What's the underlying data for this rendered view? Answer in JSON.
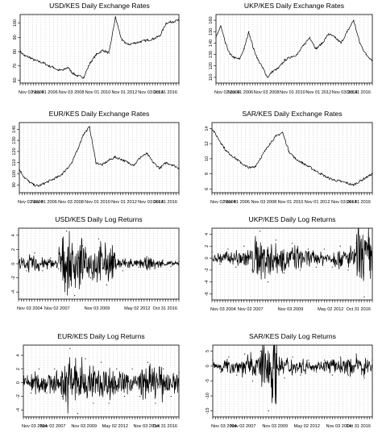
{
  "chart_data": [
    {
      "type": "line",
      "title": "USD/KES Daily Exchange Rates",
      "xlabel": "",
      "ylabel": "",
      "x_ticks": [
        "Nov 02 2004",
        "Nov 01 2006",
        "Nov 03 2008",
        "Nov 01 2010",
        "Nov 01 2012",
        "Nov 03 2014",
        "Oct 31 2016"
      ],
      "y_ticks": [
        "60",
        "70",
        "80",
        "90",
        "100"
      ],
      "ylim": [
        58,
        106
      ],
      "x": [
        0,
        3,
        6,
        9,
        12,
        15,
        18,
        21,
        24,
        27,
        30,
        33,
        36,
        40,
        44,
        48,
        52,
        56,
        60,
        64,
        68,
        72,
        76,
        80,
        84,
        88,
        92,
        96,
        100
      ],
      "values": [
        80,
        77,
        76,
        74,
        73,
        72,
        70,
        69,
        67,
        67,
        69,
        65,
        63,
        62,
        72,
        78,
        81,
        79,
        104,
        88,
        85,
        86,
        87,
        88,
        89,
        91,
        100,
        101,
        102
      ],
      "grid": true
    },
    {
      "type": "line",
      "title": "UKP/KES Daily Exchange Rates",
      "xlabel": "",
      "ylabel": "",
      "x_ticks": [
        "Nov 02 2004",
        "Nov 01 2006",
        "Nov 03 2008",
        "Nov 01 2010",
        "Nov 01 2012",
        "Nov 03 2014",
        "Oct 31 2016"
      ],
      "y_ticks": [
        "110",
        "120",
        "130",
        "140",
        "150",
        "160"
      ],
      "ylim": [
        105,
        165
      ],
      "x": [
        0,
        3,
        6,
        9,
        12,
        15,
        18,
        21,
        24,
        27,
        30,
        33,
        36,
        40,
        44,
        48,
        52,
        56,
        60,
        64,
        68,
        72,
        76,
        80,
        84,
        88,
        92,
        96,
        100
      ],
      "values": [
        145,
        155,
        140,
        130,
        127,
        126,
        135,
        150,
        135,
        125,
        118,
        110,
        115,
        118,
        125,
        128,
        130,
        138,
        145,
        135,
        140,
        148,
        145,
        140,
        150,
        160,
        140,
        130,
        125
      ],
      "grid": true
    },
    {
      "type": "line",
      "title": "EUR/KES Daily Exchange Rates",
      "xlabel": "",
      "ylabel": "",
      "x_ticks": [
        "Nov 02 2004",
        "Nov 01 2006",
        "Nov 03 2008",
        "Nov 01 2010",
        "Nov 01 2012",
        "Nov 03 2014",
        "Oct 31 2016"
      ],
      "y_ticks": [
        "90",
        "100",
        "110",
        "120",
        "130",
        "140"
      ],
      "ylim": [
        83,
        146
      ],
      "x": [
        0,
        3,
        6,
        9,
        12,
        15,
        18,
        21,
        24,
        27,
        30,
        33,
        36,
        40,
        44,
        48,
        52,
        56,
        60,
        64,
        68,
        72,
        76,
        80,
        84,
        88,
        92,
        96,
        100
      ],
      "values": [
        104,
        97,
        93,
        90,
        89,
        91,
        93,
        95,
        97,
        100,
        105,
        110,
        120,
        135,
        142,
        110,
        108,
        112,
        115,
        113,
        110,
        108,
        115,
        118,
        110,
        105,
        110,
        108,
        105
      ],
      "grid": true
    },
    {
      "type": "line",
      "title": "SAR/KES Daily Exchange Rates",
      "xlabel": "",
      "ylabel": "",
      "x_ticks": [
        "Nov 02 2004",
        "Nov 01 2006",
        "Nov 03 2008",
        "Nov 01 2010",
        "Nov 01 2012",
        "Nov 03 2014",
        "Oct 31 2016"
      ],
      "y_ticks": [
        "6",
        "8",
        "10",
        "12",
        "14"
      ],
      "ylim": [
        5.5,
        14.8
      ],
      "x": [
        0,
        3,
        6,
        9,
        12,
        15,
        18,
        21,
        24,
        27,
        30,
        33,
        36,
        40,
        44,
        48,
        52,
        56,
        60,
        64,
        68,
        72,
        76,
        80,
        84,
        88,
        92,
        96,
        100
      ],
      "values": [
        14,
        13,
        12,
        11,
        10.5,
        10,
        9.5,
        9,
        8.8,
        9,
        10,
        11,
        12,
        13,
        13.5,
        11,
        10,
        9.5,
        9,
        8.5,
        8,
        7.5,
        7.2,
        7,
        6.8,
        6.5,
        7,
        7.5,
        8
      ],
      "grid": true
    },
    {
      "type": "line",
      "title": "USD/KES Daily Log Returns",
      "xlabel": "",
      "ylabel": "",
      "x_ticks": [
        "Nov 03 2004",
        "Nov 02 2007",
        "Nov 03 2009",
        "May 02 2012",
        "Oct 31 2016"
      ],
      "y_ticks": [
        "-4",
        "-2",
        "0",
        "2",
        "4"
      ],
      "ylim": [
        -5,
        5
      ],
      "x": [
        0,
        5,
        10,
        15,
        20,
        25,
        30,
        35,
        40,
        45,
        50,
        55,
        60,
        65,
        70,
        75,
        80,
        85,
        90,
        95,
        100
      ],
      "values": [
        1,
        -1,
        1.5,
        -1,
        0.8,
        -0.7,
        4.6,
        -4.5,
        2.5,
        -2,
        3.5,
        -3,
        1.2,
        -1,
        0.6,
        -0.5,
        1,
        -0.7,
        0.5,
        -0.4,
        0.3
      ],
      "grid": true
    },
    {
      "type": "line",
      "title": "UKP/KES Daily Log Returns",
      "xlabel": "",
      "ylabel": "",
      "x_ticks": [
        "Nov 03 2004",
        "Nov 02 2007",
        "Nov 03 2009",
        "May 02 2012",
        "Oct 31 2016"
      ],
      "y_ticks": [
        "-6",
        "-4",
        "-2",
        "0",
        "2",
        "4"
      ],
      "ylim": [
        -7,
        5
      ],
      "x": [
        0,
        5,
        10,
        15,
        20,
        25,
        30,
        35,
        40,
        45,
        50,
        55,
        60,
        65,
        70,
        75,
        80,
        85,
        90,
        95,
        100
      ],
      "values": [
        1,
        -1,
        1.5,
        -1.5,
        2,
        -2,
        4.5,
        -4,
        3,
        -2.5,
        2.5,
        -2,
        1.5,
        -1.5,
        1.5,
        -1.5,
        2,
        -2,
        2.5,
        -6.5,
        1.5
      ],
      "grid": true
    },
    {
      "type": "line",
      "title": "EUR/KES Daily Log Returns",
      "xlabel": "",
      "ylabel": "",
      "x_ticks": [
        "Nov 03 2004",
        "Nov 02 2007",
        "Nov 03 2009",
        "May 02 2012",
        "Nov 03 2014",
        "Oct 31 2016"
      ],
      "y_ticks": [
        "-4",
        "-2",
        "0",
        "2",
        "4"
      ],
      "ylim": [
        -5,
        5.5
      ],
      "x": [
        0,
        5,
        10,
        15,
        20,
        25,
        30,
        35,
        40,
        45,
        50,
        55,
        60,
        65,
        70,
        75,
        80,
        85,
        90,
        95,
        100
      ],
      "values": [
        1.5,
        -1.5,
        2,
        -1.5,
        2,
        -2,
        5,
        -4.5,
        3.5,
        -3,
        3,
        -3,
        2,
        -2,
        2,
        -2,
        3,
        -3,
        2,
        -2,
        1.5
      ],
      "grid": true
    },
    {
      "type": "line",
      "title": "SAR/KES Daily Log Returns",
      "xlabel": "",
      "ylabel": "",
      "x_ticks": [
        "Nov 03 2004",
        "Nov 02 2007",
        "Nov 03 2009",
        "May 02 2012",
        "Nov 03 2014",
        "Oct 31 2016"
      ],
      "y_ticks": [
        "-15",
        "-10",
        "-5",
        "0",
        "5"
      ],
      "ylim": [
        -17,
        7
      ],
      "x": [
        0,
        5,
        10,
        15,
        20,
        25,
        30,
        35,
        40,
        45,
        50,
        55,
        60,
        65,
        70,
        75,
        80,
        85,
        90,
        95,
        100
      ],
      "values": [
        2,
        -2,
        3,
        -3,
        4,
        -5,
        5,
        -15,
        4,
        -4,
        3,
        -3,
        2,
        -2,
        2,
        -3,
        3,
        -3,
        4,
        -4,
        2
      ],
      "grid": true
    }
  ]
}
